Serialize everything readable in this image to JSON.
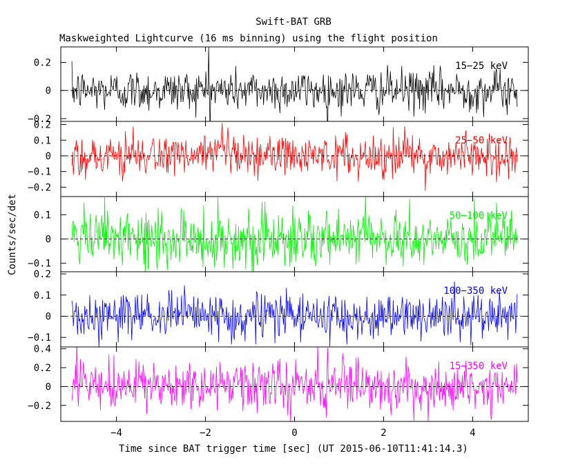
{
  "chart_data": {
    "type": "line",
    "title": "Swift-BAT GRB",
    "subtitle": "Maskweighted Lightcurve (16 ms binning) using the flight position",
    "xlabel": "Time since BAT trigger time [sec] (UT 2015-06-10T11:41:14.3)",
    "ylabel": "Counts/sec/det",
    "xlim": [
      -5.25,
      5.25
    ],
    "x_ticks": [
      -4,
      -2,
      0,
      2,
      4
    ],
    "x_tick_labels": [
      "−4",
      "−2",
      "0",
      "2",
      "4"
    ],
    "x_range": [
      -5.0,
      5.0
    ],
    "bin_width": 0.016,
    "grid": false,
    "legend_placement": "top-right of each panel",
    "series": [
      {
        "name": "15−25 keV",
        "color": "#000000",
        "ylim": [
          -0.22,
          0.31
        ],
        "y_ticks": [
          -0.2,
          0,
          0.2
        ],
        "y_tick_labels": [
          "−0.2",
          "0",
          "0.2"
        ],
        "noise_sigma": 0.075,
        "spike": {
          "x": -1.92,
          "y": 0.31
        }
      },
      {
        "name": "25−50 keV",
        "color": "#ff0000",
        "ylim": [
          -0.26,
          0.22
        ],
        "y_ticks": [
          -0.2,
          -0.1,
          0,
          0.1,
          0.2
        ],
        "y_tick_labels": [
          "−0.2",
          "−0.1",
          "0",
          "0.1",
          "0.2"
        ],
        "noise_sigma": 0.07
      },
      {
        "name": "50−100 keV",
        "color": "#00ee00",
        "ylim": [
          -0.135,
          0.175
        ],
        "y_ticks": [
          -0.1,
          0,
          0.1
        ],
        "y_tick_labels": [
          "−0.1",
          "0",
          "0.1"
        ],
        "noise_sigma": 0.06
      },
      {
        "name": "100−350 keV",
        "color": "#0000ff",
        "ylim": [
          -0.145,
          0.21
        ],
        "y_ticks": [
          -0.1,
          0,
          0.1,
          0.2
        ],
        "y_tick_labels": [
          "−0.1",
          "0",
          "0.1",
          "0.2"
        ],
        "noise_sigma": 0.055
      },
      {
        "name": "15−350 keV",
        "color": "#ff00ff",
        "ylim": [
          -0.37,
          0.42
        ],
        "y_ticks": [
          -0.2,
          0,
          0.2,
          0.4
        ],
        "y_tick_labels": [
          "−0.2",
          "0",
          "0.2",
          "0.4"
        ],
        "noise_sigma": 0.13
      }
    ]
  }
}
